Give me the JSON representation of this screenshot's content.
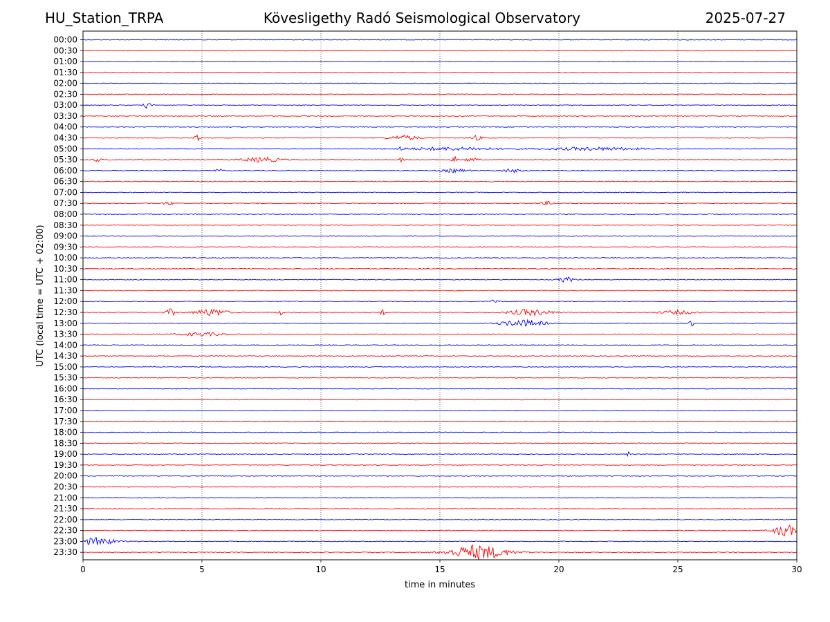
{
  "header": {
    "station": "HU_Station_TRPA",
    "title": "Kövesligethy Radó Seismological Observatory",
    "date": "2025-07-27"
  },
  "chart_data": {
    "type": "line",
    "title": "Kövesligethy Radó Seismological Observatory",
    "xlabel": "time in minutes",
    "ylabel": "UTC (local time = UTC + 02:00)",
    "xlim": [
      0,
      30
    ],
    "xticks": [
      0,
      5,
      10,
      15,
      20,
      25,
      30
    ],
    "grid": "vertical dotted lines at x = 5, 10, 15, 20, 25",
    "colors": {
      "even_rows": "#0000ff",
      "odd_rows": "#ff0000"
    },
    "rows": [
      "00:00",
      "00:30",
      "01:00",
      "01:30",
      "02:00",
      "02:30",
      "03:00",
      "03:30",
      "04:00",
      "04:30",
      "05:00",
      "05:30",
      "06:00",
      "06:30",
      "07:00",
      "07:30",
      "08:00",
      "08:30",
      "09:00",
      "09:30",
      "10:00",
      "10:30",
      "11:00",
      "11:30",
      "12:00",
      "12:30",
      "13:00",
      "13:30",
      "14:00",
      "14:30",
      "15:00",
      "15:30",
      "16:00",
      "16:30",
      "17:00",
      "17:30",
      "18:00",
      "18:30",
      "19:00",
      "19:30",
      "20:00",
      "20:30",
      "21:00",
      "21:30",
      "22:00",
      "22:30",
      "23:00",
      "23:30"
    ],
    "events": [
      {
        "row": "03:00",
        "t": 2.7,
        "amp": 0.5,
        "dur": 0.3
      },
      {
        "row": "04:30",
        "t": 4.8,
        "amp": 0.8,
        "dur": 0.2
      },
      {
        "row": "04:30",
        "t": 13.5,
        "amp": 0.4,
        "dur": 1.2
      },
      {
        "row": "04:30",
        "t": 16.5,
        "amp": 0.4,
        "dur": 0.5
      },
      {
        "row": "05:00",
        "t": 13.4,
        "amp": 0.3,
        "dur": 0.3
      },
      {
        "row": "05:00",
        "t": 15.5,
        "amp": 0.25,
        "dur": 4.0
      },
      {
        "row": "05:00",
        "t": 21.5,
        "amp": 0.25,
        "dur": 4.0
      },
      {
        "row": "05:30",
        "t": 0.6,
        "amp": 0.25,
        "dur": 0.4
      },
      {
        "row": "05:30",
        "t": 7.5,
        "amp": 0.4,
        "dur": 1.6
      },
      {
        "row": "05:30",
        "t": 13.4,
        "amp": 0.5,
        "dur": 0.2
      },
      {
        "row": "05:30",
        "t": 15.6,
        "amp": 0.6,
        "dur": 0.2
      },
      {
        "row": "05:30",
        "t": 16.3,
        "amp": 0.3,
        "dur": 0.6
      },
      {
        "row": "06:00",
        "t": 5.7,
        "amp": 0.3,
        "dur": 0.3
      },
      {
        "row": "06:00",
        "t": 15.6,
        "amp": 0.3,
        "dur": 1.0
      },
      {
        "row": "06:00",
        "t": 18.0,
        "amp": 0.3,
        "dur": 0.8
      },
      {
        "row": "07:30",
        "t": 3.6,
        "amp": 0.3,
        "dur": 0.4
      },
      {
        "row": "07:30",
        "t": 19.5,
        "amp": 0.3,
        "dur": 0.5
      },
      {
        "row": "11:00",
        "t": 20.3,
        "amp": 0.45,
        "dur": 0.6
      },
      {
        "row": "12:00",
        "t": 17.3,
        "amp": 0.25,
        "dur": 0.4
      },
      {
        "row": "12:30",
        "t": 3.7,
        "amp": 0.55,
        "dur": 0.4
      },
      {
        "row": "12:30",
        "t": 5.4,
        "amp": 0.6,
        "dur": 1.3
      },
      {
        "row": "12:30",
        "t": 8.3,
        "amp": 0.4,
        "dur": 0.3
      },
      {
        "row": "12:30",
        "t": 12.6,
        "amp": 0.4,
        "dur": 0.3
      },
      {
        "row": "12:30",
        "t": 18.8,
        "amp": 0.5,
        "dur": 1.8
      },
      {
        "row": "12:30",
        "t": 25.0,
        "amp": 0.3,
        "dur": 1.5
      },
      {
        "row": "13:00",
        "t": 18.5,
        "amp": 0.55,
        "dur": 1.8
      },
      {
        "row": "13:00",
        "t": 25.6,
        "amp": 0.45,
        "dur": 0.3
      },
      {
        "row": "13:30",
        "t": 5.0,
        "amp": 0.3,
        "dur": 1.8
      },
      {
        "row": "19:00",
        "t": 22.9,
        "amp": 0.9,
        "dur": 0.1
      },
      {
        "row": "22:30",
        "t": 29.5,
        "amp": 1.0,
        "dur": 0.9
      },
      {
        "row": "23:00",
        "t": 0.6,
        "amp": 0.6,
        "dur": 1.6
      },
      {
        "row": "23:30",
        "t": 16.6,
        "amp": 1.2,
        "dur": 2.4
      }
    ]
  }
}
